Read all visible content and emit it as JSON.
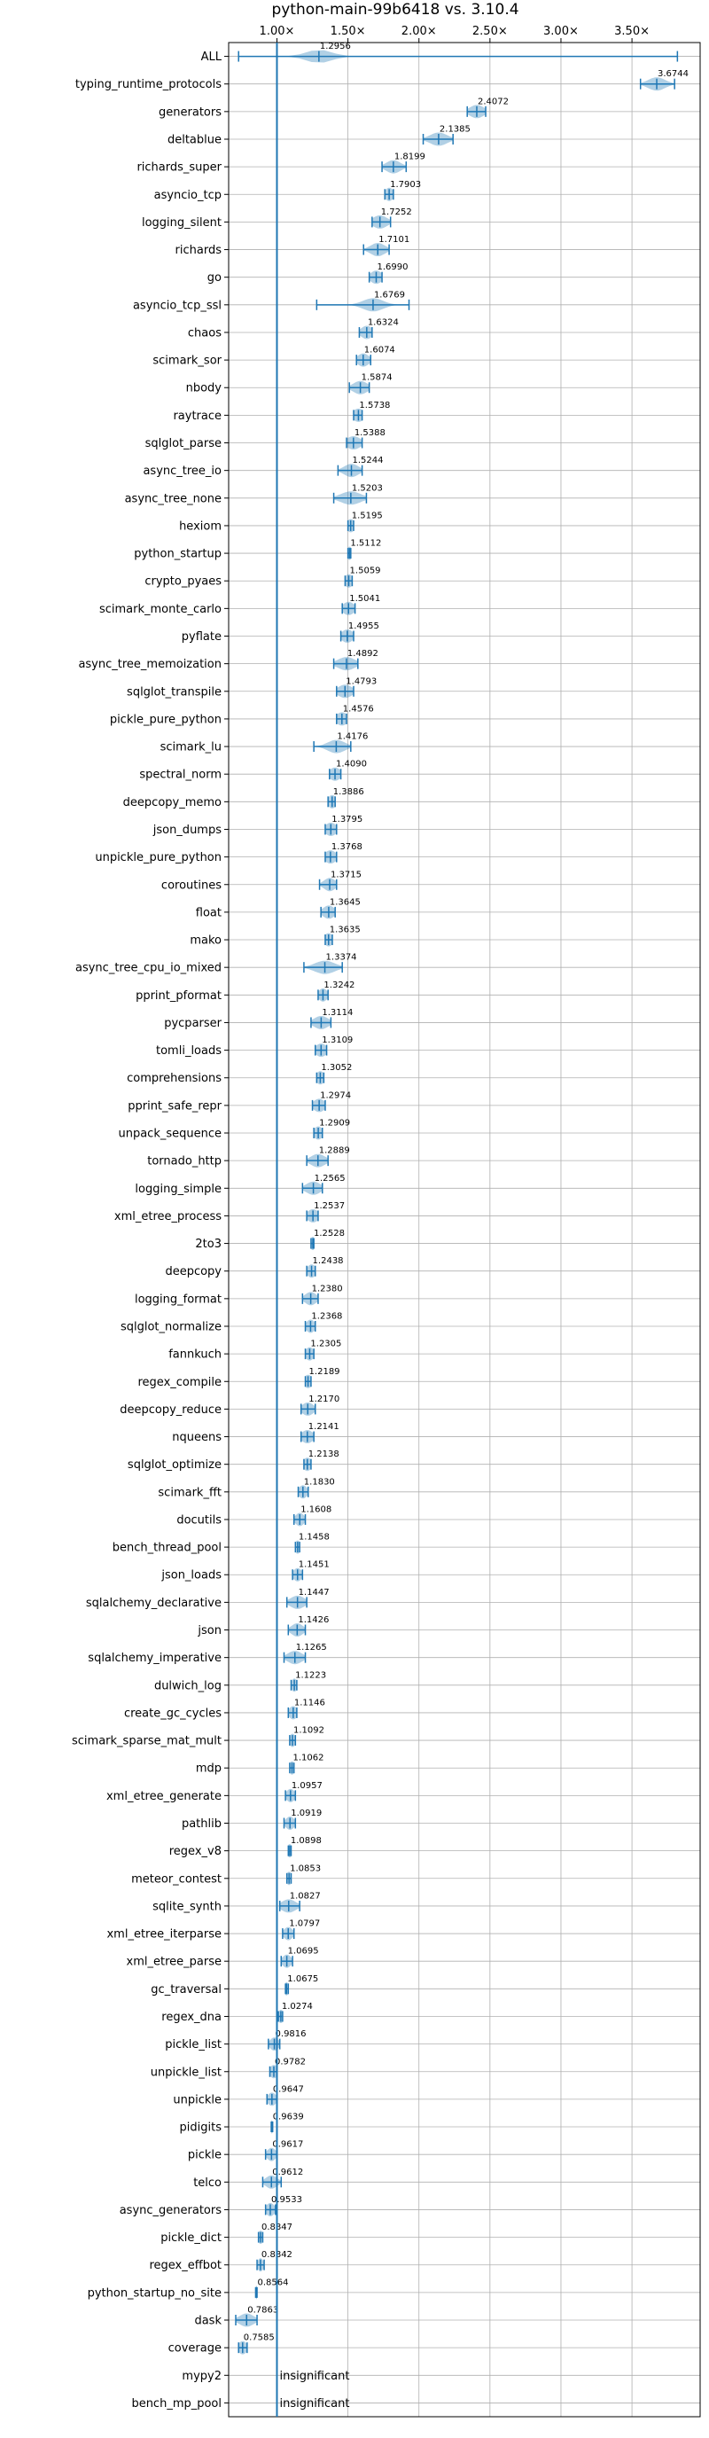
{
  "chart_data": {
    "type": "violin",
    "title": "python-main-99b6418 vs. 3.10.4",
    "x_tick_labels": [
      "1.00×",
      "1.50×",
      "2.00×",
      "2.50×",
      "3.00×",
      "3.50×"
    ],
    "x_ticks": [
      1.0,
      1.5,
      2.0,
      2.5,
      3.0,
      3.5
    ],
    "xlim": [
      0.66,
      3.98
    ],
    "reference_line": 1.0,
    "grid": true,
    "series_color": "#1f77b4",
    "insignificant_label": "insignificant",
    "benchmarks": [
      {
        "name": "ALL",
        "value": 1.2956,
        "label": "1.2956",
        "low": 0.73,
        "high": 3.82,
        "spread": 0.09
      },
      {
        "name": "typing_runtime_protocols",
        "value": 3.6744,
        "label": "3.6744",
        "low": 3.56,
        "high": 3.8,
        "spread": 0.06
      },
      {
        "name": "generators",
        "value": 2.4072,
        "label": "2.4072",
        "low": 2.34,
        "high": 2.47,
        "spread": 0.05
      },
      {
        "name": "deltablue",
        "value": 2.1385,
        "label": "2.1385",
        "low": 2.03,
        "high": 2.24,
        "spread": 0.06
      },
      {
        "name": "richards_super",
        "value": 1.8199,
        "label": "1.8199",
        "low": 1.74,
        "high": 1.91,
        "spread": 0.05
      },
      {
        "name": "asyncio_tcp",
        "value": 1.7903,
        "label": "1.7903",
        "low": 1.76,
        "high": 1.82,
        "spread": 0.03
      },
      {
        "name": "logging_silent",
        "value": 1.7252,
        "label": "1.7252",
        "low": 1.67,
        "high": 1.8,
        "spread": 0.05
      },
      {
        "name": "richards",
        "value": 1.7101,
        "label": "1.7101",
        "low": 1.61,
        "high": 1.79,
        "spread": 0.05
      },
      {
        "name": "go",
        "value": 1.699,
        "label": "1.6990",
        "low": 1.65,
        "high": 1.74,
        "spread": 0.04
      },
      {
        "name": "asyncio_tcp_ssl",
        "value": 1.6769,
        "label": "1.6769",
        "low": 1.28,
        "high": 1.93,
        "spread": 0.07
      },
      {
        "name": "chaos",
        "value": 1.6324,
        "label": "1.6324",
        "low": 1.58,
        "high": 1.67,
        "spread": 0.04
      },
      {
        "name": "scimark_sor",
        "value": 1.6074,
        "label": "1.6074",
        "low": 1.56,
        "high": 1.66,
        "spread": 0.04
      },
      {
        "name": "nbody",
        "value": 1.5874,
        "label": "1.5874",
        "low": 1.51,
        "high": 1.65,
        "spread": 0.05
      },
      {
        "name": "raytrace",
        "value": 1.5738,
        "label": "1.5738",
        "low": 1.54,
        "high": 1.6,
        "spread": 0.04
      },
      {
        "name": "sqlglot_parse",
        "value": 1.5388,
        "label": "1.5388",
        "low": 1.49,
        "high": 1.6,
        "spread": 0.05
      },
      {
        "name": "async_tree_io",
        "value": 1.5244,
        "label": "1.5244",
        "low": 1.43,
        "high": 1.6,
        "spread": 0.05
      },
      {
        "name": "async_tree_none",
        "value": 1.5203,
        "label": "1.5203",
        "low": 1.4,
        "high": 1.63,
        "spread": 0.07
      },
      {
        "name": "hexiom",
        "value": 1.5195,
        "label": "1.5195",
        "low": 1.5,
        "high": 1.54,
        "spread": 0.03
      },
      {
        "name": "python_startup",
        "value": 1.5112,
        "label": "1.5112",
        "low": 1.5,
        "high": 1.52,
        "spread": 0.02
      },
      {
        "name": "crypto_pyaes",
        "value": 1.5059,
        "label": "1.5059",
        "low": 1.48,
        "high": 1.53,
        "spread": 0.03
      },
      {
        "name": "scimark_monte_carlo",
        "value": 1.5041,
        "label": "1.5041",
        "low": 1.46,
        "high": 1.55,
        "spread": 0.04
      },
      {
        "name": "pyflate",
        "value": 1.4955,
        "label": "1.4955",
        "low": 1.45,
        "high": 1.54,
        "spread": 0.04
      },
      {
        "name": "async_tree_memoization",
        "value": 1.4892,
        "label": "1.4892",
        "low": 1.4,
        "high": 1.57,
        "spread": 0.06
      },
      {
        "name": "sqlglot_transpile",
        "value": 1.4793,
        "label": "1.4793",
        "low": 1.42,
        "high": 1.54,
        "spread": 0.05
      },
      {
        "name": "pickle_pure_python",
        "value": 1.4576,
        "label": "1.4576",
        "low": 1.42,
        "high": 1.49,
        "spread": 0.04
      },
      {
        "name": "scimark_lu",
        "value": 1.4176,
        "label": "1.4176",
        "low": 1.26,
        "high": 1.52,
        "spread": 0.06
      },
      {
        "name": "spectral_norm",
        "value": 1.409,
        "label": "1.4090",
        "low": 1.37,
        "high": 1.45,
        "spread": 0.04
      },
      {
        "name": "deepcopy_memo",
        "value": 1.3886,
        "label": "1.3886",
        "low": 1.36,
        "high": 1.41,
        "spread": 0.03
      },
      {
        "name": "json_dumps",
        "value": 1.3795,
        "label": "1.3795",
        "low": 1.34,
        "high": 1.42,
        "spread": 0.04
      },
      {
        "name": "unpickle_pure_python",
        "value": 1.3768,
        "label": "1.3768",
        "low": 1.34,
        "high": 1.42,
        "spread": 0.04
      },
      {
        "name": "coroutines",
        "value": 1.3715,
        "label": "1.3715",
        "low": 1.3,
        "high": 1.42,
        "spread": 0.04
      },
      {
        "name": "float",
        "value": 1.3645,
        "label": "1.3645",
        "low": 1.31,
        "high": 1.41,
        "spread": 0.04
      },
      {
        "name": "mako",
        "value": 1.3635,
        "label": "1.3635",
        "low": 1.34,
        "high": 1.39,
        "spread": 0.03
      },
      {
        "name": "async_tree_cpu_io_mixed",
        "value": 1.3374,
        "label": "1.3374",
        "low": 1.19,
        "high": 1.46,
        "spread": 0.07
      },
      {
        "name": "pprint_pformat",
        "value": 1.3242,
        "label": "1.3242",
        "low": 1.29,
        "high": 1.36,
        "spread": 0.03
      },
      {
        "name": "pycparser",
        "value": 1.3114,
        "label": "1.3114",
        "low": 1.24,
        "high": 1.38,
        "spread": 0.05
      },
      {
        "name": "tomli_loads",
        "value": 1.3109,
        "label": "1.3109",
        "low": 1.27,
        "high": 1.35,
        "spread": 0.04
      },
      {
        "name": "comprehensions",
        "value": 1.3052,
        "label": "1.3052",
        "low": 1.28,
        "high": 1.33,
        "spread": 0.03
      },
      {
        "name": "pprint_safe_repr",
        "value": 1.2974,
        "label": "1.2974",
        "low": 1.25,
        "high": 1.34,
        "spread": 0.04
      },
      {
        "name": "unpack_sequence",
        "value": 1.2909,
        "label": "1.2909",
        "low": 1.26,
        "high": 1.32,
        "spread": 0.03
      },
      {
        "name": "tornado_http",
        "value": 1.2889,
        "label": "1.2889",
        "low": 1.21,
        "high": 1.36,
        "spread": 0.05
      },
      {
        "name": "logging_simple",
        "value": 1.2565,
        "label": "1.2565",
        "low": 1.18,
        "high": 1.32,
        "spread": 0.05
      },
      {
        "name": "xml_etree_process",
        "value": 1.2537,
        "label": "1.2537",
        "low": 1.21,
        "high": 1.29,
        "spread": 0.04
      },
      {
        "name": "2to3",
        "value": 1.2528,
        "label": "1.2528",
        "low": 1.24,
        "high": 1.26,
        "spread": 0.02
      },
      {
        "name": "deepcopy",
        "value": 1.2438,
        "label": "1.2438",
        "low": 1.21,
        "high": 1.27,
        "spread": 0.03
      },
      {
        "name": "logging_format",
        "value": 1.238,
        "label": "1.2380",
        "low": 1.18,
        "high": 1.29,
        "spread": 0.04
      },
      {
        "name": "sqlglot_normalize",
        "value": 1.2368,
        "label": "1.2368",
        "low": 1.2,
        "high": 1.27,
        "spread": 0.03
      },
      {
        "name": "fannkuch",
        "value": 1.2305,
        "label": "1.2305",
        "low": 1.2,
        "high": 1.26,
        "spread": 0.03
      },
      {
        "name": "regex_compile",
        "value": 1.2189,
        "label": "1.2189",
        "low": 1.2,
        "high": 1.24,
        "spread": 0.03
      },
      {
        "name": "deepcopy_reduce",
        "value": 1.217,
        "label": "1.2170",
        "low": 1.17,
        "high": 1.27,
        "spread": 0.04
      },
      {
        "name": "nqueens",
        "value": 1.2141,
        "label": "1.2141",
        "low": 1.17,
        "high": 1.26,
        "spread": 0.04
      },
      {
        "name": "sqlglot_optimize",
        "value": 1.2138,
        "label": "1.2138",
        "low": 1.19,
        "high": 1.24,
        "spread": 0.03
      },
      {
        "name": "scimark_fft",
        "value": 1.183,
        "label": "1.1830",
        "low": 1.15,
        "high": 1.22,
        "spread": 0.03
      },
      {
        "name": "docutils",
        "value": 1.1608,
        "label": "1.1608",
        "low": 1.12,
        "high": 1.2,
        "spread": 0.03
      },
      {
        "name": "bench_thread_pool",
        "value": 1.1458,
        "label": "1.1458",
        "low": 1.13,
        "high": 1.16,
        "spread": 0.02
      },
      {
        "name": "json_loads",
        "value": 1.1451,
        "label": "1.1451",
        "low": 1.11,
        "high": 1.18,
        "spread": 0.03
      },
      {
        "name": "sqlalchemy_declarative",
        "value": 1.1447,
        "label": "1.1447",
        "low": 1.07,
        "high": 1.21,
        "spread": 0.05
      },
      {
        "name": "json",
        "value": 1.1426,
        "label": "1.1426",
        "low": 1.08,
        "high": 1.2,
        "spread": 0.04
      },
      {
        "name": "sqlalchemy_imperative",
        "value": 1.1265,
        "label": "1.1265",
        "low": 1.05,
        "high": 1.2,
        "spread": 0.05
      },
      {
        "name": "dulwich_log",
        "value": 1.1223,
        "label": "1.1223",
        "low": 1.1,
        "high": 1.14,
        "spread": 0.02
      },
      {
        "name": "create_gc_cycles",
        "value": 1.1146,
        "label": "1.1146",
        "low": 1.08,
        "high": 1.14,
        "spread": 0.03
      },
      {
        "name": "scimark_sparse_mat_mult",
        "value": 1.1092,
        "label": "1.1092",
        "low": 1.09,
        "high": 1.13,
        "spread": 0.02
      },
      {
        "name": "mdp",
        "value": 1.1062,
        "label": "1.1062",
        "low": 1.09,
        "high": 1.12,
        "spread": 0.02
      },
      {
        "name": "xml_etree_generate",
        "value": 1.0957,
        "label": "1.0957",
        "low": 1.06,
        "high": 1.13,
        "spread": 0.03
      },
      {
        "name": "pathlib",
        "value": 1.0919,
        "label": "1.0919",
        "low": 1.05,
        "high": 1.13,
        "spread": 0.03
      },
      {
        "name": "regex_v8",
        "value": 1.0898,
        "label": "1.0898",
        "low": 1.08,
        "high": 1.1,
        "spread": 0.02
      },
      {
        "name": "meteor_contest",
        "value": 1.0853,
        "label": "1.0853",
        "low": 1.07,
        "high": 1.1,
        "spread": 0.02
      },
      {
        "name": "sqlite_synth",
        "value": 1.0827,
        "label": "1.0827",
        "low": 1.02,
        "high": 1.16,
        "spread": 0.05
      },
      {
        "name": "xml_etree_iterparse",
        "value": 1.0797,
        "label": "1.0797",
        "low": 1.04,
        "high": 1.12,
        "spread": 0.03
      },
      {
        "name": "xml_etree_parse",
        "value": 1.0695,
        "label": "1.0695",
        "low": 1.03,
        "high": 1.11,
        "spread": 0.03
      },
      {
        "name": "gc_traversal",
        "value": 1.0675,
        "label": "1.0675",
        "low": 1.06,
        "high": 1.08,
        "spread": 0.015
      },
      {
        "name": "regex_dna",
        "value": 1.0274,
        "label": "1.0274",
        "low": 1.01,
        "high": 1.04,
        "spread": 0.02
      },
      {
        "name": "pickle_list",
        "value": 0.9816,
        "label": "0.9816",
        "low": 0.94,
        "high": 1.02,
        "spread": 0.03
      },
      {
        "name": "unpickle_list",
        "value": 0.9782,
        "label": "0.9782",
        "low": 0.95,
        "high": 1.0,
        "spread": 0.03
      },
      {
        "name": "unpickle",
        "value": 0.9647,
        "label": "0.9647",
        "low": 0.93,
        "high": 1.0,
        "spread": 0.03
      },
      {
        "name": "pidigits",
        "value": 0.9639,
        "label": "0.9639",
        "low": 0.96,
        "high": 0.97,
        "spread": 0.01
      },
      {
        "name": "pickle",
        "value": 0.9617,
        "label": "0.9617",
        "low": 0.92,
        "high": 1.0,
        "spread": 0.03
      },
      {
        "name": "telco",
        "value": 0.9612,
        "label": "0.9612",
        "low": 0.9,
        "high": 1.03,
        "spread": 0.04
      },
      {
        "name": "async_generators",
        "value": 0.9533,
        "label": "0.9533",
        "low": 0.92,
        "high": 0.99,
        "spread": 0.03
      },
      {
        "name": "pickle_dict",
        "value": 0.8847,
        "label": "0.8847",
        "low": 0.87,
        "high": 0.9,
        "spread": 0.02
      },
      {
        "name": "regex_effbot",
        "value": 0.8842,
        "label": "0.8842",
        "low": 0.86,
        "high": 0.91,
        "spread": 0.02
      },
      {
        "name": "python_startup_no_site",
        "value": 0.8564,
        "label": "0.8564",
        "low": 0.85,
        "high": 0.86,
        "spread": 0.01
      },
      {
        "name": "dask",
        "value": 0.7863,
        "label": "0.7863",
        "low": 0.71,
        "high": 0.86,
        "spread": 0.05
      },
      {
        "name": "coverage",
        "value": 0.7585,
        "label": "0.7585",
        "low": 0.73,
        "high": 0.79,
        "spread": 0.03
      },
      {
        "name": "mypy2",
        "value": null,
        "label": "insignificant"
      },
      {
        "name": "bench_mp_pool",
        "value": null,
        "label": "insignificant"
      }
    ]
  }
}
